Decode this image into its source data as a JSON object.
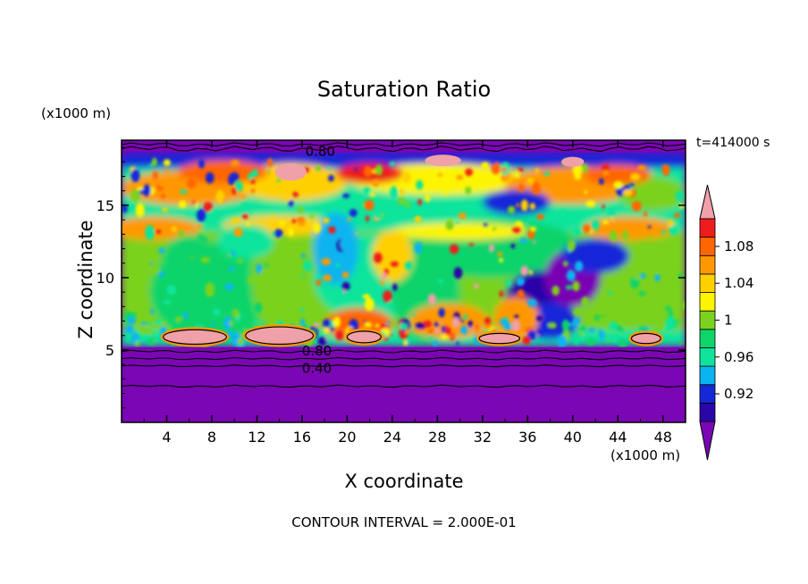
{
  "chart_data": {
    "type": "heatmap",
    "title": "Saturation Ratio",
    "xlabel": "X coordinate",
    "ylabel": "Z coordinate",
    "x_units": "(x1000 m)",
    "z_units": "(x1000 m)",
    "time_label": "t=414000 s",
    "footer": "CONTOUR INTERVAL = 2.000E-01",
    "xlim": [
      0,
      50
    ],
    "ylim": [
      0,
      19.5
    ],
    "x_ticks": [
      4,
      8,
      12,
      16,
      20,
      24,
      28,
      32,
      36,
      40,
      44,
      48
    ],
    "y_ticks": [
      5,
      10,
      15
    ],
    "x_tick_labels": [
      "4",
      "8",
      "12",
      "16",
      "20",
      "24",
      "28",
      "32",
      "36",
      "40",
      "44",
      "48"
    ],
    "y_tick_labels": [
      "5",
      "10",
      "15"
    ],
    "contour_labels": [
      {
        "text": "0.80",
        "x": 17.4,
        "z": 18.8
      },
      {
        "text": "0.80",
        "x": 17.1,
        "z": 5.0
      },
      {
        "text": "0.40",
        "x": 17.1,
        "z": 3.8
      }
    ],
    "colorbar": {
      "colors": [
        "#7a06b4",
        "#2a06a8",
        "#1428d8",
        "#0ab4f0",
        "#10e49c",
        "#0fd46a",
        "#7ad21e",
        "#fcf402",
        "#ffd000",
        "#ff9800",
        "#ff6600",
        "#ee1c1c",
        "#f0a0a8"
      ],
      "labels": [
        "0.92",
        "0.96",
        "1",
        "1.04",
        "1.08"
      ],
      "label_steps": [
        1.5,
        3.5,
        5.5,
        7.5,
        9.5
      ],
      "extend": "both"
    },
    "fields": {
      "background": "#7a06b4",
      "lower_band": "#0fd46a",
      "upper_band": "#ff9800"
    }
  }
}
